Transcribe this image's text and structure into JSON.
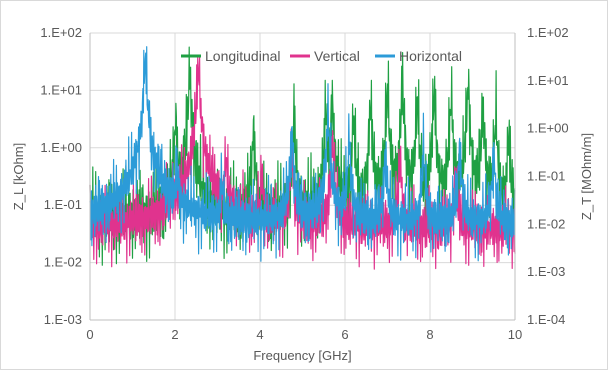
{
  "chart_data": {
    "type": "line",
    "title": "",
    "xlabel": "Frequency [GHz]",
    "ylabel_left": "Z_L [kOhm]",
    "ylabel_right": "Z_T [MOhm/m]",
    "xlim": [
      0,
      10
    ],
    "x_ticks": [
      0,
      2,
      4,
      6,
      8,
      10
    ],
    "x_tick_labels": [
      "0",
      "2",
      "4",
      "6",
      "8",
      "10"
    ],
    "y_left_scale": "log",
    "y_left_lim": [
      0.001,
      100
    ],
    "y_left_tick_labels": [
      "1.E-03",
      "1.E-02",
      "1.E-01",
      "1.E+00",
      "1.E+01",
      "1.E+02"
    ],
    "y_right_scale": "log",
    "y_right_lim": [
      0.0001,
      100
    ],
    "y_right_tick_labels": [
      "1.E-04",
      "1.E-03",
      "1.E-02",
      "1.E-01",
      "1.E+00",
      "1.E+01",
      "1.E+02"
    ],
    "grid": true,
    "legend_position": "top",
    "series": [
      {
        "name": "Longitudinal",
        "axis": "left",
        "color": "#1fa043",
        "baseline": 0.06,
        "peaks": [
          {
            "x": 2.02,
            "y": 3.0
          },
          {
            "x": 2.35,
            "y": 22
          },
          {
            "x": 3.85,
            "y": 2.2
          },
          {
            "x": 4.8,
            "y": 2.8
          },
          {
            "x": 5.7,
            "y": 8
          },
          {
            "x": 5.55,
            "y": 4
          },
          {
            "x": 6.2,
            "y": 3
          },
          {
            "x": 6.6,
            "y": 5
          },
          {
            "x": 7.0,
            "y": 9
          },
          {
            "x": 7.35,
            "y": 11
          },
          {
            "x": 7.7,
            "y": 6
          },
          {
            "x": 8.1,
            "y": 8
          },
          {
            "x": 8.5,
            "y": 7
          },
          {
            "x": 8.9,
            "y": 12
          },
          {
            "x": 9.25,
            "y": 5
          },
          {
            "x": 9.55,
            "y": 3
          },
          {
            "x": 9.85,
            "y": 1.5
          }
        ]
      },
      {
        "name": "Vertical",
        "axis": "right",
        "color": "#e0338e",
        "baseline": 0.008,
        "peaks": [
          {
            "x": 1.95,
            "y": 0.05
          },
          {
            "x": 2.55,
            "y": 18
          },
          {
            "x": 3.2,
            "y": 0.2
          },
          {
            "x": 4.05,
            "y": 0.1
          },
          {
            "x": 4.75,
            "y": 0.3
          },
          {
            "x": 5.7,
            "y": 0.5
          },
          {
            "x": 7.3,
            "y": 0.2
          },
          {
            "x": 8.6,
            "y": 0.1
          }
        ]
      },
      {
        "name": "Horizontal",
        "axis": "right",
        "color": "#2c9bd8",
        "baseline": 0.01,
        "peaks": [
          {
            "x": 1.3,
            "y": 25
          },
          {
            "x": 2.05,
            "y": 0.1
          },
          {
            "x": 3.1,
            "y": 0.06
          },
          {
            "x": 4.75,
            "y": 0.8
          },
          {
            "x": 5.6,
            "y": 1.6
          },
          {
            "x": 6.1,
            "y": 0.5
          },
          {
            "x": 6.95,
            "y": 0.3
          },
          {
            "x": 7.85,
            "y": 0.3
          },
          {
            "x": 8.7,
            "y": 0.4
          },
          {
            "x": 9.5,
            "y": 0.3
          }
        ]
      }
    ]
  }
}
